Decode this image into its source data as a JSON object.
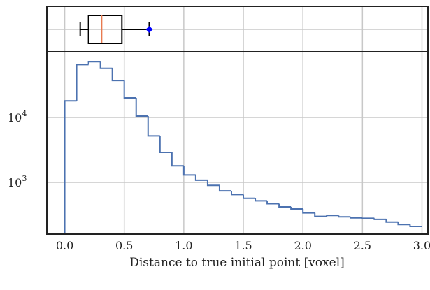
{
  "chart_data": [
    {
      "type": "boxplot",
      "orientation": "horizontal",
      "whisker_low": 0.13,
      "q1": 0.2,
      "median": 0.31,
      "q3": 0.48,
      "whisker_high": 0.71,
      "marker": 0.71,
      "marker_color": "#0000ff",
      "median_color": "#e87a4f",
      "xlim": [
        -0.15,
        3.05
      ],
      "grid": true
    },
    {
      "type": "histogram",
      "step": true,
      "color": "#4c72b0",
      "xlabel": "Distance to true initial point [voxel]",
      "ylabel": "",
      "xlim": [
        -0.15,
        3.05
      ],
      "ylim": [
        150,
        120000
      ],
      "yscale": "log",
      "grid": true,
      "x_ticks": [
        0.0,
        0.5,
        1.0,
        1.5,
        2.0,
        2.5,
        3.0
      ],
      "x_tick_labels": [
        "0.0",
        "0.5",
        "1.0",
        "1.5",
        "2.0",
        "2.5",
        "3.0"
      ],
      "y_ticks": [
        10000,
        1000
      ],
      "y_tick_labels": [
        {
          "base": "10",
          "exp": "4"
        },
        {
          "base": "10",
          "exp": "3"
        }
      ],
      "bin_edges": [
        0.0,
        0.1,
        0.2,
        0.3,
        0.4,
        0.5,
        0.6,
        0.7,
        0.8,
        0.9,
        1.0,
        1.1,
        1.2,
        1.3,
        1.4,
        1.5,
        1.6,
        1.7,
        1.8,
        1.9,
        2.0,
        2.1,
        2.2,
        2.3,
        2.4,
        2.5,
        2.6,
        2.7,
        2.8,
        2.9,
        3.0
      ],
      "counts": [
        18000,
        65000,
        72000,
        57000,
        37000,
        20000,
        10500,
        5200,
        2900,
        1800,
        1300,
        1080,
        900,
        740,
        650,
        570,
        520,
        470,
        420,
        390,
        340,
        300,
        310,
        295,
        285,
        280,
        270,
        245,
        225,
        210
      ]
    }
  ]
}
